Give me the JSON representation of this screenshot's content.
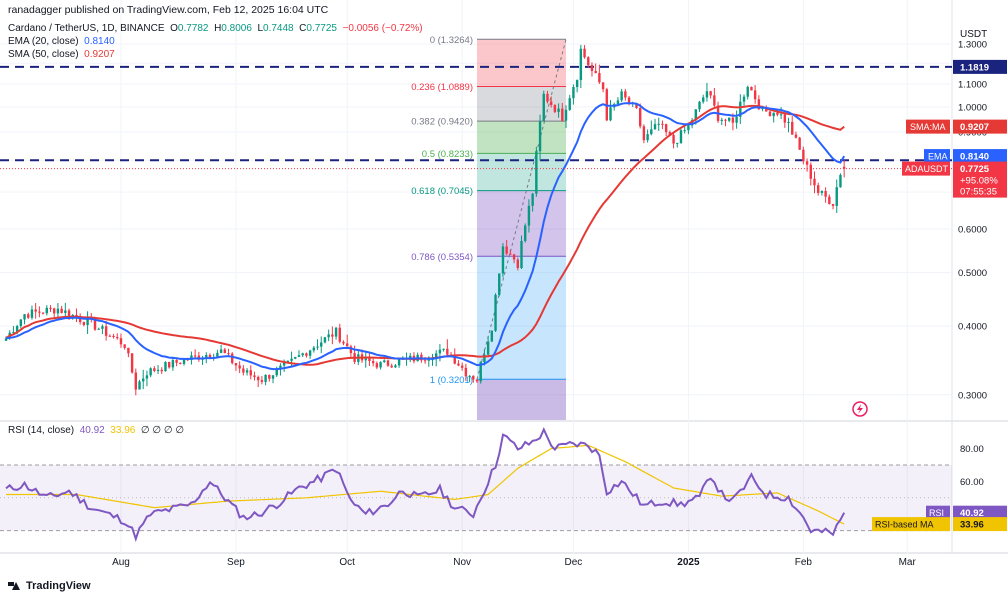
{
  "publisher": "ranadagger published on TradingView.com, Feb 12, 2025 16:04 UTC",
  "symbol_line": {
    "name": "Cardano / TetherUS, 1D, BINANCE",
    "o_label": "O",
    "o": "0.7782",
    "h_label": "H",
    "h": "0.8006",
    "l_label": "L",
    "l": "0.7448",
    "c_label": "C",
    "c": "0.7725",
    "change": "−0.0056 (−0.72%)"
  },
  "ema_legend": {
    "label": "EMA (20, close)",
    "value": "0.8140"
  },
  "sma_legend": {
    "label": "SMA (50, close)",
    "value": "0.9207"
  },
  "rsi_legend": {
    "label": "RSI (14, close)",
    "rsi": "40.92",
    "ma": "33.96",
    "rest": "∅  ∅  ∅  ∅"
  },
  "logo": "TradingView",
  "colors": {
    "up": "#089981",
    "down": "#f23645",
    "ema": "#2962ff",
    "sma": "#e53935",
    "rsi": "#7e57c2",
    "rsi_ma": "#f0c400",
    "level": "#1a237e"
  },
  "chart_data": [
    {
      "type": "candlestick",
      "title": "Cardano / TetherUS, 1D, BINANCE",
      "yaxis_unit": "USDT",
      "y_scale": "log",
      "ylim": [
        0.27,
        1.45
      ],
      "y_ticks": [
        "1.3000",
        "1.2000",
        "1.1000",
        "1.0000",
        "0.9000",
        "0.8000",
        "0.7000",
        "0.6000",
        "0.5000",
        "0.4000",
        "0.3000"
      ],
      "x_ticks": [
        "Aug",
        "Sep",
        "Oct",
        "Nov",
        "Dec",
        "2025",
        "Feb",
        "Mar"
      ],
      "x_tick_dates": [
        "2024-08-01",
        "2024-09-01",
        "2024-10-01",
        "2024-11-01",
        "2024-12-01",
        "2025-01-01",
        "2025-02-01",
        "2025-03-01"
      ],
      "x_range": [
        "2024-07-01",
        "2025-03-12"
      ],
      "price_keypoints": [
        [
          "2024-07-01",
          0.38
        ],
        [
          "2024-07-06",
          0.42
        ],
        [
          "2024-07-15",
          0.43
        ],
        [
          "2024-07-25",
          0.4
        ],
        [
          "2024-08-02",
          0.37
        ],
        [
          "2024-08-05",
          0.31
        ],
        [
          "2024-08-08",
          0.33
        ],
        [
          "2024-08-20",
          0.35
        ],
        [
          "2024-08-28",
          0.36
        ],
        [
          "2024-09-03",
          0.33
        ],
        [
          "2024-09-08",
          0.32
        ],
        [
          "2024-09-15",
          0.34
        ],
        [
          "2024-09-20",
          0.36
        ],
        [
          "2024-09-28",
          0.39
        ],
        [
          "2024-10-03",
          0.35
        ],
        [
          "2024-10-10",
          0.34
        ],
        [
          "2024-10-20",
          0.35
        ],
        [
          "2024-10-28",
          0.36
        ],
        [
          "2024-11-02",
          0.33
        ],
        [
          "2024-11-05",
          0.32
        ],
        [
          "2024-11-09",
          0.4
        ],
        [
          "2024-11-12",
          0.56
        ],
        [
          "2024-11-16",
          0.52
        ],
        [
          "2024-11-20",
          0.7
        ],
        [
          "2024-11-23",
          1.05
        ],
        [
          "2024-11-28",
          0.96
        ],
        [
          "2024-12-02",
          1.14
        ],
        [
          "2024-12-03",
          1.27
        ],
        [
          "2024-12-06",
          1.16
        ],
        [
          "2024-12-09",
          1.08
        ],
        [
          "2024-12-10",
          0.96
        ],
        [
          "2024-12-14",
          1.05
        ],
        [
          "2024-12-18",
          0.98
        ],
        [
          "2024-12-20",
          0.87
        ],
        [
          "2024-12-24",
          0.93
        ],
        [
          "2024-12-28",
          0.86
        ],
        [
          "2025-01-01",
          0.92
        ],
        [
          "2025-01-06",
          1.07
        ],
        [
          "2025-01-09",
          0.96
        ],
        [
          "2025-01-13",
          0.93
        ],
        [
          "2025-01-17",
          1.1
        ],
        [
          "2025-01-21",
          0.98
        ],
        [
          "2025-01-25",
          0.98
        ],
        [
          "2025-01-28",
          0.93
        ],
        [
          "2025-02-01",
          0.8
        ],
        [
          "2025-02-03",
          0.75
        ],
        [
          "2025-02-05",
          0.7
        ],
        [
          "2025-02-09",
          0.67
        ],
        [
          "2025-02-11",
          0.76
        ],
        [
          "2025-02-12",
          0.7725
        ]
      ],
      "ema": {
        "name": "EMA",
        "value": 0.814,
        "label": "0.8140"
      },
      "sma": {
        "name": "SMA:MA",
        "value": 0.9207,
        "label": "0.9207"
      },
      "last": {
        "name": "ADAUSDT",
        "value": 0.7725,
        "label": "0.7725",
        "change": "+95.08%",
        "countdown": "07:55:35"
      },
      "horizontal_levels": [
        {
          "value": 1.1819,
          "label": "1.1819"
        },
        {
          "value": 0.8,
          "label": "0.8000"
        }
      ],
      "fibonacci": {
        "start": "2024-11-05",
        "end": "2024-11-29",
        "levels": [
          {
            "ratio": "0",
            "price": 1.3264,
            "label": "0 (1.3264)"
          },
          {
            "ratio": "0.236",
            "price": 1.0889,
            "label": "0.236 (1.0889)"
          },
          {
            "ratio": "0.382",
            "price": 0.942,
            "label": "0.382 (0.9420)"
          },
          {
            "ratio": "0.5",
            "price": 0.8233,
            "label": "0.5 (0.8233)"
          },
          {
            "ratio": "0.618",
            "price": 0.7045,
            "label": "0.618 (0.7045)"
          },
          {
            "ratio": "0.786",
            "price": 0.5354,
            "label": "0.786 (0.5354)"
          },
          {
            "ratio": "1",
            "price": 0.3201,
            "label": "1 (0.3201)"
          }
        ]
      }
    },
    {
      "type": "line",
      "title": "RSI (14, close)",
      "ylim": [
        20,
        95
      ],
      "y_ticks": [
        "80.00",
        "60.00"
      ],
      "bands": [
        70,
        30
      ],
      "rsi_keypoints": [
        [
          "2024-07-01",
          55
        ],
        [
          "2024-07-06",
          58
        ],
        [
          "2024-07-12",
          50
        ],
        [
          "2024-07-18",
          54
        ],
        [
          "2024-07-24",
          44
        ],
        [
          "2024-08-02",
          36
        ],
        [
          "2024-08-05",
          27
        ],
        [
          "2024-08-09",
          40
        ],
        [
          "2024-08-20",
          46
        ],
        [
          "2024-08-25",
          60
        ],
        [
          "2024-08-29",
          50
        ],
        [
          "2024-09-03",
          38
        ],
        [
          "2024-09-07",
          40
        ],
        [
          "2024-09-12",
          46
        ],
        [
          "2024-09-18",
          56
        ],
        [
          "2024-09-24",
          62
        ],
        [
          "2024-09-28",
          68
        ],
        [
          "2024-10-02",
          48
        ],
        [
          "2024-10-06",
          40
        ],
        [
          "2024-10-12",
          46
        ],
        [
          "2024-10-16",
          55
        ],
        [
          "2024-10-20",
          50
        ],
        [
          "2024-10-26",
          55
        ],
        [
          "2024-10-30",
          44
        ],
        [
          "2024-11-04",
          40
        ],
        [
          "2024-11-06",
          50
        ],
        [
          "2024-11-10",
          70
        ],
        [
          "2024-11-12",
          88
        ],
        [
          "2024-11-16",
          80
        ],
        [
          "2024-11-20",
          84
        ],
        [
          "2024-11-23",
          90
        ],
        [
          "2024-11-26",
          80
        ],
        [
          "2024-12-01",
          83
        ],
        [
          "2024-12-05",
          82
        ],
        [
          "2024-12-08",
          76
        ],
        [
          "2024-12-10",
          54
        ],
        [
          "2024-12-14",
          60
        ],
        [
          "2024-12-20",
          45
        ],
        [
          "2024-12-25",
          48
        ],
        [
          "2024-12-30",
          46
        ],
        [
          "2025-01-04",
          50
        ],
        [
          "2025-01-07",
          64
        ],
        [
          "2025-01-10",
          52
        ],
        [
          "2025-01-13",
          48
        ],
        [
          "2025-01-18",
          62
        ],
        [
          "2025-01-22",
          52
        ],
        [
          "2025-01-28",
          50
        ],
        [
          "2025-02-01",
          38
        ],
        [
          "2025-02-03",
          30
        ],
        [
          "2025-02-07",
          29
        ],
        [
          "2025-02-09",
          28
        ],
        [
          "2025-02-11",
          36
        ],
        [
          "2025-02-12",
          40.92
        ]
      ],
      "ma_keypoints": [
        [
          "2024-07-01",
          52
        ],
        [
          "2024-07-20",
          52
        ],
        [
          "2024-08-10",
          44
        ],
        [
          "2024-08-30",
          48
        ],
        [
          "2024-09-20",
          50
        ],
        [
          "2024-10-10",
          54
        ],
        [
          "2024-10-30",
          49
        ],
        [
          "2024-11-08",
          52
        ],
        [
          "2024-11-16",
          68
        ],
        [
          "2024-11-25",
          80
        ],
        [
          "2024-12-05",
          82
        ],
        [
          "2024-12-15",
          72
        ],
        [
          "2024-12-28",
          56
        ],
        [
          "2025-01-10",
          51
        ],
        [
          "2025-01-25",
          53
        ],
        [
          "2025-02-05",
          42
        ],
        [
          "2025-02-12",
          33.96
        ]
      ],
      "rsi": {
        "name": "RSI",
        "value": 40.92,
        "label": "40.92"
      },
      "rsi_ma": {
        "name": "RSI-based MA",
        "value": 33.96,
        "label": "33.96"
      }
    }
  ]
}
